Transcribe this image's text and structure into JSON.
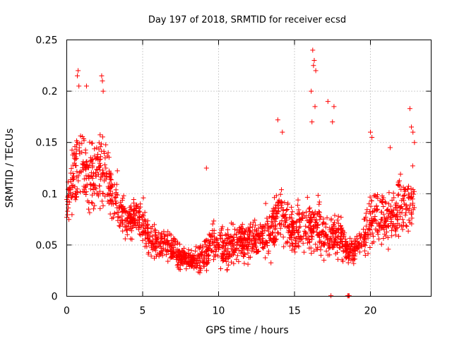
{
  "chart_data": {
    "type": "scatter",
    "title": "Day 197 of 2018, SRMTID for receiver ecsd",
    "xlabel": "GPS time / hours",
    "ylabel": "SRMTID / TECUs",
    "xlim": [
      0,
      24
    ],
    "ylim": [
      0,
      0.25
    ],
    "xticks": [
      0,
      5,
      10,
      15,
      20
    ],
    "xtick_labels": [
      "0",
      "5",
      "10",
      "15",
      "20"
    ],
    "yticks": [
      0,
      0.05,
      0.1,
      0.15,
      0.2,
      0.25
    ],
    "ytick_labels": [
      "0",
      "0.05",
      "0.1",
      "0.15",
      "0.2",
      "0.25"
    ],
    "grid": true,
    "marker": "plus",
    "series": [
      {
        "name": "SRMTID",
        "color": "#ff0000",
        "trend_x": [
          0,
          0.5,
          1,
          1.5,
          2,
          2.5,
          3,
          3.5,
          4,
          4.5,
          5,
          5.5,
          6,
          6.5,
          7,
          7.5,
          8,
          8.5,
          9,
          9.5,
          10,
          10.5,
          11,
          11.5,
          12,
          12.5,
          13,
          13.5,
          14,
          14.5,
          15,
          15.5,
          16,
          16.5,
          17,
          17.5,
          18,
          18.5,
          19,
          19.5,
          20,
          20.5,
          21,
          21.5,
          22,
          22.5,
          23
        ],
        "trend_y": [
          0.09,
          0.12,
          0.14,
          0.11,
          0.12,
          0.12,
          0.1,
          0.085,
          0.07,
          0.08,
          0.07,
          0.055,
          0.05,
          0.05,
          0.045,
          0.04,
          0.035,
          0.035,
          0.04,
          0.05,
          0.05,
          0.045,
          0.05,
          0.055,
          0.055,
          0.055,
          0.06,
          0.065,
          0.08,
          0.07,
          0.06,
          0.065,
          0.07,
          0.07,
          0.055,
          0.06,
          0.06,
          0.045,
          0.045,
          0.055,
          0.08,
          0.08,
          0.075,
          0.08,
          0.09,
          0.09,
          0.1
        ],
        "spread": [
          0.025,
          0.035,
          0.04,
          0.035,
          0.035,
          0.035,
          0.03,
          0.025,
          0.02,
          0.02,
          0.02,
          0.015,
          0.015,
          0.015,
          0.015,
          0.012,
          0.012,
          0.012,
          0.015,
          0.02,
          0.02,
          0.018,
          0.02,
          0.02,
          0.02,
          0.02,
          0.02,
          0.025,
          0.03,
          0.025,
          0.02,
          0.025,
          0.025,
          0.025,
          0.02,
          0.02,
          0.02,
          0.015,
          0.015,
          0.02,
          0.03,
          0.025,
          0.025,
          0.025,
          0.03,
          0.03,
          0.03
        ],
        "outliers_x": [
          0.7,
          0.75,
          0.8,
          2.3,
          2.35,
          2.4,
          1.3,
          9.2,
          13.9,
          14.2,
          16.2,
          16.25,
          16.3,
          16.35,
          16.1,
          16.15,
          16.4,
          17.2,
          17.5,
          17.6,
          20,
          20.1,
          21.3,
          22.6,
          22.7,
          22.8,
          22.9
        ],
        "outliers_y": [
          0.215,
          0.22,
          0.205,
          0.215,
          0.21,
          0.2,
          0.205,
          0.125,
          0.172,
          0.16,
          0.24,
          0.225,
          0.23,
          0.185,
          0.2,
          0.17,
          0.22,
          0.19,
          0.17,
          0.185,
          0.16,
          0.155,
          0.145,
          0.183,
          0.165,
          0.16,
          0.15
        ],
        "zeros_x": [
          17.4,
          18.5,
          18.55,
          18.6
        ]
      }
    ]
  }
}
